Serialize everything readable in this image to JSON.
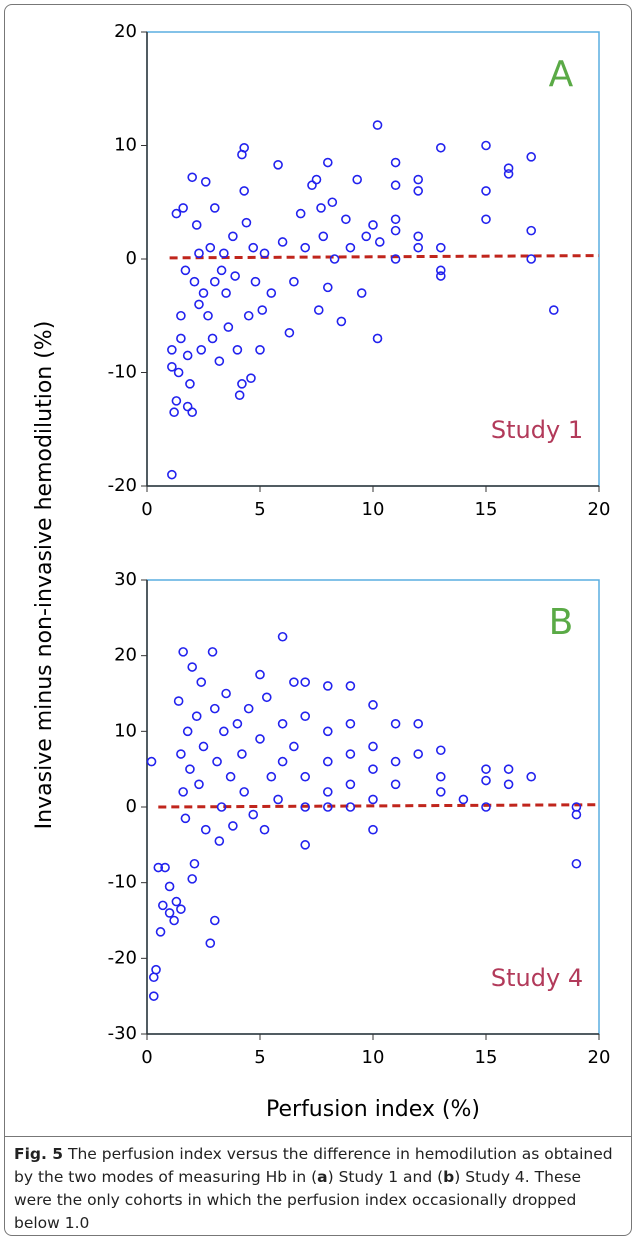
{
  "y_axis_label": "Invasive minus non-invasive hemodilution (%)",
  "x_axis_label": "Perfusion index (%)",
  "caption": {
    "label": "Fig. 5",
    "parts": [
      " The perfusion index versus the difference in hemodilution as obtained by the two modes of measuring Hb in (",
      "a",
      ") Study 1 and (",
      "b",
      ") Study 4. These were the only cohorts in which the perfusion index occasionally dropped below 1.0"
    ]
  },
  "chart_data": [
    {
      "type": "scatter",
      "panel_label": "A",
      "annotation": "Study 1",
      "color": "#2222ee",
      "label_color": "#5aaa46",
      "annotation_color": "#b23a5a",
      "xlim": [
        0,
        20
      ],
      "ylim": [
        -20,
        20
      ],
      "xticks": [
        0,
        5,
        10,
        15,
        20
      ],
      "yticks": [
        -20,
        -10,
        0,
        10,
        20
      ],
      "reference_line": {
        "color": "#c0251c",
        "x": [
          1,
          20
        ],
        "y": [
          0.1,
          0.3
        ]
      },
      "x": [
        1.1,
        1.1,
        1.2,
        1.3,
        1.4,
        1.1,
        1.3,
        1.5,
        1.5,
        1.6,
        1.7,
        1.8,
        1.8,
        1.9,
        2,
        2,
        2.1,
        2.2,
        2.3,
        2.3,
        2.4,
        2.5,
        2.6,
        2.7,
        2.8,
        2.9,
        3,
        3,
        3.2,
        3.3,
        3.4,
        3.5,
        3.6,
        3.8,
        3.9,
        4,
        4.1,
        4.2,
        4.2,
        4.3,
        4.3,
        4.4,
        4.5,
        4.6,
        4.7,
        4.8,
        5,
        5.1,
        5.2,
        5.5,
        5.8,
        6,
        6.3,
        6.5,
        6.8,
        7,
        7.3,
        7.5,
        7.6,
        7.7,
        7.8,
        8,
        8,
        8.2,
        8.3,
        8.6,
        8.8,
        9,
        9.3,
        9.5,
        9.7,
        10,
        10.2,
        10.2,
        10.3,
        11,
        11,
        11,
        11,
        11,
        12,
        12,
        12,
        12,
        13,
        13,
        13,
        13,
        15,
        15,
        15,
        16,
        16,
        17,
        17,
        17,
        18
      ],
      "values": [
        -19,
        -8,
        -13.5,
        -12.5,
        -10,
        -9.5,
        4,
        -7,
        -5,
        4.5,
        -1,
        -8.5,
        -13,
        -11,
        -13.5,
        7.2,
        -2,
        3,
        -4,
        0.5,
        -8,
        -3,
        6.8,
        -5,
        1,
        -7,
        4.5,
        -2,
        -9,
        -1,
        0.5,
        -3,
        -6,
        2,
        -1.5,
        -8,
        -12,
        -11,
        9.2,
        9.8,
        6,
        3.2,
        -5,
        -10.5,
        1,
        -2,
        -8,
        -4.5,
        0.5,
        -3,
        8.3,
        1.5,
        -6.5,
        -2,
        4,
        1,
        6.5,
        7,
        -4.5,
        4.5,
        2,
        8.5,
        -2.5,
        5,
        0,
        -5.5,
        3.5,
        1,
        7,
        -3,
        2,
        3,
        -7,
        11.8,
        1.5,
        8.5,
        6.5,
        3.5,
        0,
        2.5,
        7,
        6,
        2,
        1,
        9.8,
        -1,
        -1.5,
        1,
        10,
        6,
        3.5,
        8,
        7.5,
        9,
        2.5,
        0,
        -4.5
      ]
    },
    {
      "type": "scatter",
      "panel_label": "B",
      "annotation": "Study 4",
      "color": "#2222ee",
      "label_color": "#5aaa46",
      "annotation_color": "#b23a5a",
      "xlim": [
        0,
        20
      ],
      "ylim": [
        -30,
        30
      ],
      "xticks": [
        0,
        5,
        10,
        15,
        20
      ],
      "yticks": [
        -30,
        -20,
        -10,
        0,
        10,
        20,
        30
      ],
      "reference_line": {
        "color": "#c0251c",
        "x": [
          0.5,
          20
        ],
        "y": [
          0,
          0.3
        ]
      },
      "x": [
        0.2,
        0.3,
        0.3,
        0.4,
        0.5,
        0.6,
        0.7,
        0.8,
        1,
        1,
        1.2,
        1.3,
        1.5,
        1.6,
        1.4,
        1.5,
        1.6,
        1.7,
        1.8,
        1.9,
        2,
        2,
        2.1,
        2.2,
        2.3,
        2.4,
        2.5,
        2.6,
        2.8,
        2.9,
        3,
        3,
        3.1,
        3.2,
        3.3,
        3.4,
        3.5,
        3.7,
        3.8,
        4,
        4.2,
        4.3,
        4.5,
        4.7,
        5,
        5,
        5.2,
        5.3,
        5.5,
        5.8,
        6,
        6,
        6,
        6.5,
        6.5,
        7,
        7,
        7,
        7,
        7,
        8,
        8,
        8,
        8,
        8,
        9,
        9,
        9,
        9,
        9,
        10,
        10,
        10,
        10,
        10,
        11,
        11,
        11,
        12,
        12,
        13,
        13,
        13,
        14,
        15,
        15,
        15,
        16,
        16,
        17,
        19,
        19,
        19
      ],
      "values": [
        6,
        -25,
        -22.5,
        -21.5,
        -8,
        -16.5,
        -13,
        -8,
        -14,
        -10.5,
        -15,
        -12.5,
        -13.5,
        20.5,
        14,
        7,
        2,
        -1.5,
        10,
        5,
        18.5,
        -9.5,
        -7.5,
        12,
        3,
        16.5,
        8,
        -3,
        -18,
        20.5,
        -15,
        13,
        6,
        -4.5,
        0,
        10,
        15,
        4,
        -2.5,
        11,
        7,
        2,
        13,
        -1,
        17.5,
        9,
        -3,
        14.5,
        4,
        1,
        22.5,
        11,
        6,
        16.5,
        8,
        16.5,
        12,
        4,
        -5,
        0,
        16,
        10,
        6,
        2,
        0,
        16,
        11,
        7,
        3,
        0,
        13.5,
        8,
        5,
        1,
        -3,
        11,
        6,
        3,
        11,
        7,
        7.5,
        4,
        2,
        1,
        5,
        3.5,
        0,
        5,
        3,
        4,
        0,
        -1,
        -7.5
      ]
    }
  ]
}
